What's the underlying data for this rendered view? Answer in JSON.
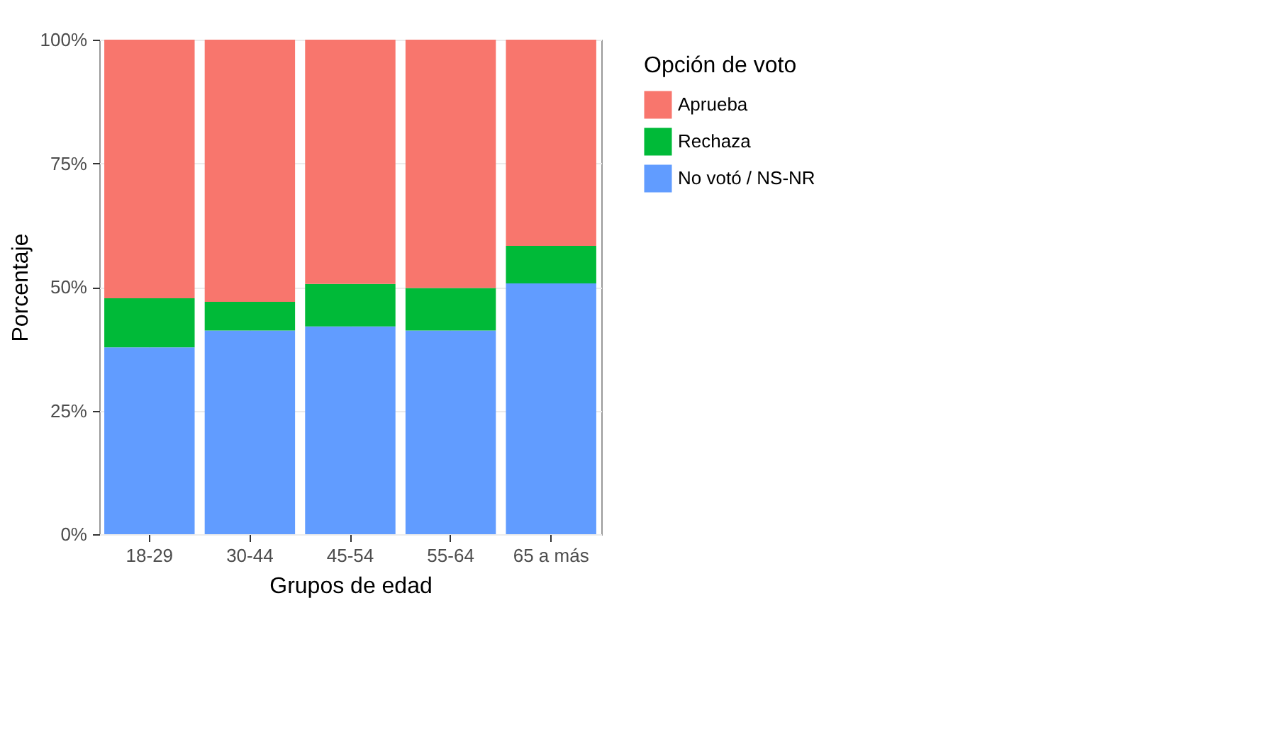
{
  "chart_data": {
    "type": "bar",
    "stacked": true,
    "xlabel": "Grupos de edad",
    "ylabel": "Porcentaje",
    "legend_title": "Opción de voto",
    "legend": "right",
    "grid": true,
    "categories": [
      "18-29",
      "30-44",
      "45-54",
      "55-64",
      "65 a más"
    ],
    "series": [
      {
        "name": "No votó / NS-NR",
        "color": "#619cff",
        "values": [
          37.8,
          41.2,
          42.0,
          41.2,
          50.7
        ]
      },
      {
        "name": "Rechaza",
        "color": "#00ba38",
        "values": [
          9.9,
          5.8,
          8.6,
          8.6,
          7.6
        ]
      },
      {
        "name": "Aprueba",
        "color": "#f8766d",
        "values": [
          52.3,
          53.0,
          49.4,
          50.2,
          41.7
        ]
      }
    ],
    "ylim": [
      0,
      100
    ],
    "yticks": [
      {
        "value": 0,
        "label": "0%"
      },
      {
        "value": 25,
        "label": "25%"
      },
      {
        "value": 50,
        "label": "50%"
      },
      {
        "value": 75,
        "label": "75%"
      },
      {
        "value": 100,
        "label": "100%"
      }
    ]
  }
}
